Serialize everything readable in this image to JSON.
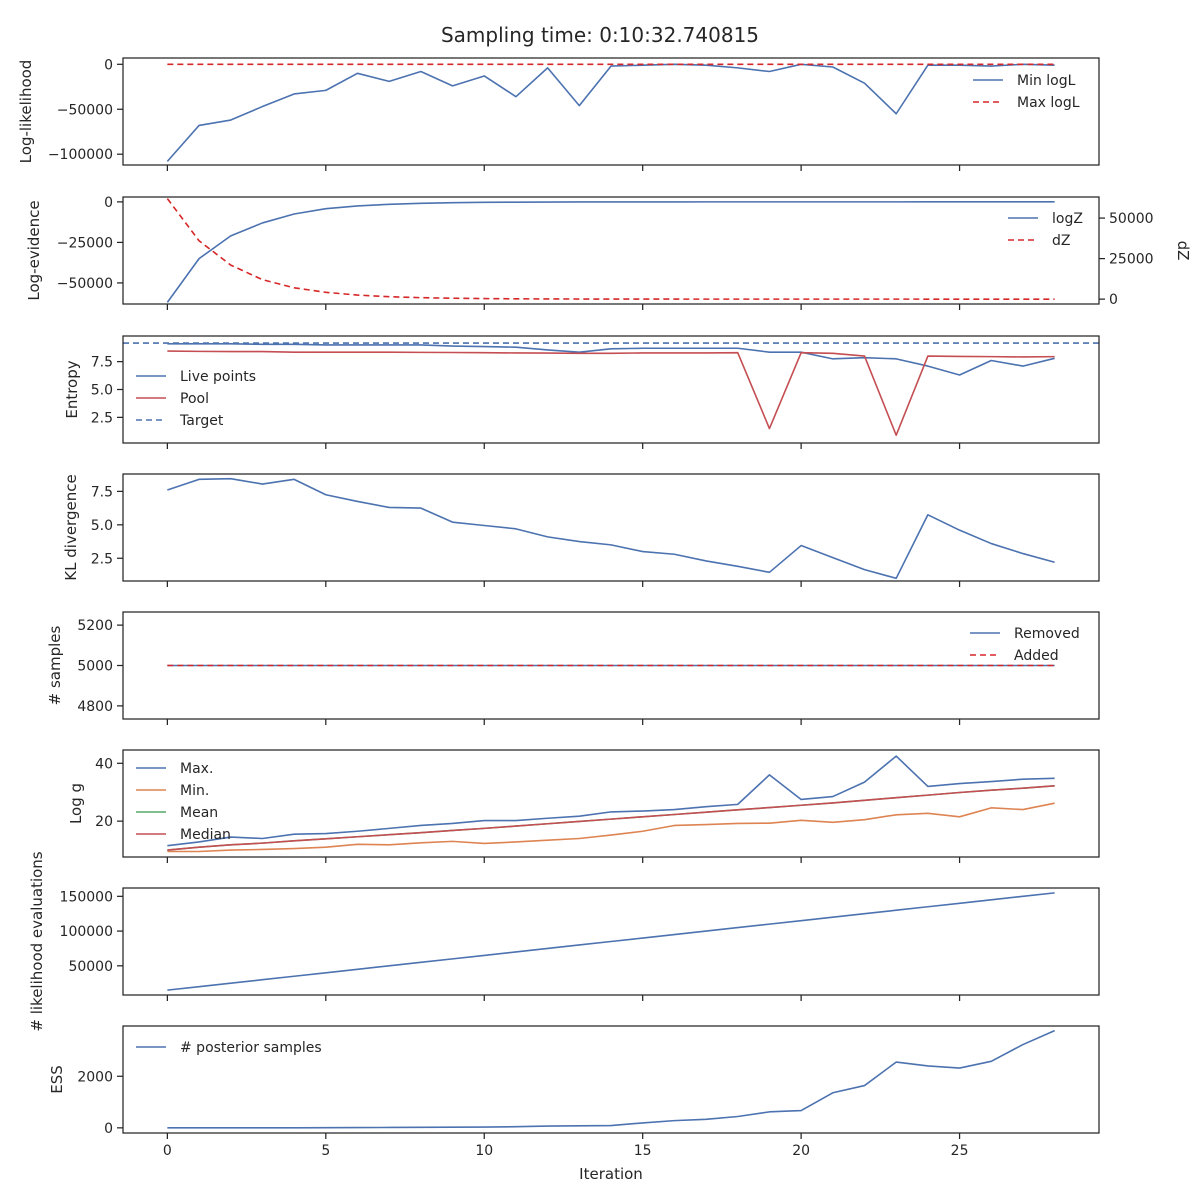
{
  "figure": {
    "title": "Sampling time: 0:10:32.740815",
    "xlabel": "Iteration",
    "x_ticks": [
      0,
      5,
      10,
      15,
      20,
      25
    ],
    "x_range": [
      -1.4,
      29.4
    ]
  },
  "colors": {
    "blue": "#4c72b0",
    "red": "#c44e52",
    "red_dashed": "#d62728",
    "orange": "#dd8452",
    "green": "#55a868"
  },
  "chart_data": [
    {
      "type": "line",
      "ylabel": "Log-likelihood",
      "ylim": [
        -112000,
        7000
      ],
      "y_ticks": [
        0,
        -50000,
        -100000
      ],
      "y_tick_labels": [
        "0",
        "−50000",
        "−100000"
      ],
      "legend": "top-right",
      "x": [
        0,
        1,
        2,
        3,
        4,
        5,
        6,
        7,
        8,
        9,
        10,
        11,
        12,
        13,
        14,
        15,
        16,
        17,
        18,
        19,
        20,
        21,
        22,
        23,
        24,
        25,
        26,
        27,
        28
      ],
      "series": [
        {
          "name": "Min logL",
          "style": "solid",
          "color": "blue",
          "values": [
            -108000,
            -68000,
            -62000,
            -47000,
            -33000,
            -29000,
            -10000,
            -19000,
            -8000,
            -24000,
            -13000,
            -36000,
            -4000,
            -46000,
            -2000,
            -1000,
            0,
            -1000,
            -4000,
            -8000,
            0,
            -3000,
            -21000,
            -55000,
            -1000,
            -1000,
            -2000,
            0,
            -1000
          ]
        },
        {
          "name": "Max logL",
          "style": "dashed",
          "color": "red_dashed",
          "values": [
            0,
            0,
            0,
            0,
            0,
            0,
            0,
            0,
            0,
            0,
            0,
            0,
            0,
            0,
            0,
            0,
            0,
            0,
            0,
            0,
            0,
            0,
            0,
            0,
            0,
            0,
            0,
            0,
            0
          ]
        }
      ]
    },
    {
      "type": "line",
      "ylabel": "Log-evidence",
      "ylabel_right": "dZ",
      "ylim": [
        -63000,
        3000
      ],
      "y_ticks": [
        0,
        -25000,
        -50000
      ],
      "y_tick_labels": [
        "0",
        "−25000",
        "−50000"
      ],
      "ylim_right": [
        -3000,
        63000
      ],
      "y_ticks_right": [
        0,
        25000,
        50000
      ],
      "y_tick_labels_right": [
        "0",
        "25000",
        "50000"
      ],
      "legend": "top-right",
      "x": [
        0,
        1,
        2,
        3,
        4,
        5,
        6,
        7,
        8,
        9,
        10,
        11,
        12,
        13,
        14,
        15,
        16,
        17,
        18,
        19,
        20,
        21,
        22,
        23,
        24,
        25,
        26,
        27,
        28
      ],
      "series": [
        {
          "name": "logZ",
          "style": "solid",
          "color": "blue",
          "axis": "left",
          "values": [
            -62000,
            -35000,
            -21000,
            -13000,
            -7500,
            -4200,
            -2500,
            -1500,
            -900,
            -500,
            -300,
            -180,
            -100,
            -60,
            -40,
            -25,
            -15,
            -10,
            -6,
            -4,
            -3,
            -2,
            -1,
            -1,
            0,
            0,
            0,
            0,
            0
          ]
        },
        {
          "name": "dZ",
          "style": "dashed",
          "color": "red_dashed",
          "axis": "right",
          "values": [
            62000,
            36000,
            21000,
            12000,
            7000,
            4200,
            2500,
            1500,
            900,
            550,
            330,
            200,
            120,
            70,
            45,
            28,
            17,
            10,
            6,
            4,
            3,
            2,
            1,
            1,
            0,
            0,
            0,
            0,
            0
          ]
        }
      ]
    },
    {
      "type": "line",
      "ylabel": "Entropy",
      "ylim": [
        0.2,
        9.8
      ],
      "y_ticks": [
        2.5,
        5.0,
        7.5
      ],
      "y_tick_labels": [
        "2.5",
        "5.0",
        "7.5"
      ],
      "legend": "left",
      "x": [
        0,
        1,
        2,
        3,
        4,
        5,
        6,
        7,
        8,
        9,
        10,
        11,
        12,
        13,
        14,
        15,
        16,
        17,
        18,
        19,
        20,
        21,
        22,
        23,
        24,
        25,
        26,
        27,
        28
      ],
      "series": [
        {
          "name": "Live points",
          "style": "solid",
          "color": "blue",
          "values": [
            9.1,
            9.1,
            9.1,
            9.05,
            9.05,
            9.0,
            9.0,
            9.0,
            9.0,
            8.9,
            8.85,
            8.8,
            8.55,
            8.35,
            8.65,
            8.7,
            8.7,
            8.7,
            8.7,
            8.35,
            8.35,
            7.75,
            7.85,
            7.75,
            7.1,
            6.3,
            7.6,
            7.1,
            7.8
          ]
        },
        {
          "name": "Pool",
          "style": "solid",
          "color": "red",
          "values": [
            8.45,
            8.42,
            8.4,
            8.4,
            8.35,
            8.35,
            8.35,
            8.35,
            8.33,
            8.32,
            8.3,
            8.28,
            8.27,
            8.25,
            8.25,
            8.28,
            8.28,
            8.28,
            8.3,
            1.5,
            8.3,
            8.25,
            8.0,
            0.9,
            8.0,
            7.97,
            7.95,
            7.92,
            7.95
          ]
        },
        {
          "name": "Target",
          "style": "dashed",
          "color": "blue",
          "constant": 9.17
        }
      ]
    },
    {
      "type": "line",
      "ylabel": "KL divergence",
      "ylim": [
        0.8,
        8.8
      ],
      "y_ticks": [
        2.5,
        5.0,
        7.5
      ],
      "y_tick_labels": [
        "2.5",
        "5.0",
        "7.5"
      ],
      "x": [
        0,
        1,
        2,
        3,
        4,
        5,
        6,
        7,
        8,
        9,
        10,
        11,
        12,
        13,
        14,
        15,
        16,
        17,
        18,
        19,
        20,
        21,
        22,
        23,
        24,
        25,
        26,
        27,
        28
      ],
      "series": [
        {
          "style": "solid",
          "color": "blue",
          "values": [
            7.6,
            8.4,
            8.45,
            8.05,
            8.4,
            7.25,
            6.75,
            6.3,
            6.25,
            5.2,
            4.95,
            4.7,
            4.1,
            3.75,
            3.5,
            3.0,
            2.8,
            2.3,
            1.9,
            1.45,
            3.45,
            2.55,
            1.65,
            1.0,
            5.75,
            4.6,
            3.6,
            2.85,
            2.2
          ]
        }
      ]
    },
    {
      "type": "line",
      "ylabel": "# samples",
      "ylim": [
        4735,
        5265
      ],
      "y_ticks": [
        4800,
        5000,
        5200
      ],
      "y_tick_labels": [
        "4800",
        "5000",
        "5200"
      ],
      "legend": "top-right",
      "x": [
        0,
        1,
        2,
        3,
        4,
        5,
        6,
        7,
        8,
        9,
        10,
        11,
        12,
        13,
        14,
        15,
        16,
        17,
        18,
        19,
        20,
        21,
        22,
        23,
        24,
        25,
        26,
        27,
        28
      ],
      "series": [
        {
          "name": "Removed",
          "style": "solid",
          "color": "blue",
          "values": [
            5000,
            5000,
            5000,
            5000,
            5000,
            5000,
            5000,
            5000,
            5000,
            5000,
            5000,
            5000,
            5000,
            5000,
            5000,
            5000,
            5000,
            5000,
            5000,
            5000,
            5000,
            5000,
            5000,
            5000,
            5000,
            5000,
            5000,
            5000,
            5000
          ]
        },
        {
          "name": "Added",
          "style": "dashed",
          "color": "red_dashed",
          "values": [
            5000,
            5000,
            5000,
            5000,
            5000,
            5000,
            5000,
            5000,
            5000,
            5000,
            5000,
            5000,
            5000,
            5000,
            5000,
            5000,
            5000,
            5000,
            5000,
            5000,
            5000,
            5000,
            5000,
            5000,
            5000,
            5000,
            5000,
            5000,
            5000
          ]
        }
      ]
    },
    {
      "type": "line",
      "ylabel": "Log g",
      "ylim": [
        7.6,
        44.6
      ],
      "y_ticks": [
        20,
        40
      ],
      "y_tick_labels": [
        "20",
        "40"
      ],
      "legend": "top-left",
      "x": [
        0,
        1,
        2,
        3,
        4,
        5,
        6,
        7,
        8,
        9,
        10,
        11,
        12,
        13,
        14,
        15,
        16,
        17,
        18,
        19,
        20,
        21,
        22,
        23,
        24,
        25,
        26,
        27,
        28
      ],
      "series": [
        {
          "name": "Max.",
          "style": "solid",
          "color": "blue",
          "values": [
            11.5,
            12.8,
            14.5,
            14.0,
            15.5,
            15.7,
            16.5,
            17.5,
            18.5,
            19.2,
            20.2,
            20.2,
            21.0,
            21.7,
            23.2,
            23.5,
            24.0,
            25.0,
            25.8,
            36.0,
            27.5,
            28.5,
            33.5,
            42.5,
            32.0,
            33.0,
            33.7,
            34.5,
            34.8
          ]
        },
        {
          "name": "Min.",
          "style": "solid",
          "color": "orange",
          "values": [
            9.5,
            9.5,
            10.0,
            10.2,
            10.5,
            11.0,
            12.0,
            11.8,
            12.5,
            13.0,
            12.3,
            12.8,
            13.4,
            14.0,
            15.2,
            16.5,
            18.5,
            18.8,
            19.2,
            19.3,
            20.3,
            19.6,
            20.5,
            22.2,
            22.7,
            21.5,
            24.6,
            24.0,
            26.2
          ]
        },
        {
          "name": "Mean",
          "style": "solid",
          "color": "green",
          "values": [
            10.0,
            11.0,
            11.8,
            12.4,
            13.2,
            13.9,
            14.6,
            15.3,
            16.0,
            16.8,
            17.5,
            18.3,
            19.1,
            19.9,
            20.7,
            21.5,
            22.3,
            23.1,
            23.9,
            24.7,
            25.5,
            26.3,
            27.2,
            28.1,
            29.0,
            29.9,
            30.7,
            31.4,
            32.2
          ]
        },
        {
          "name": "Median",
          "style": "solid",
          "color": "red",
          "values": [
            10.0,
            11.0,
            11.8,
            12.4,
            13.2,
            13.9,
            14.6,
            15.3,
            16.0,
            16.8,
            17.5,
            18.3,
            19.1,
            19.9,
            20.7,
            21.5,
            22.3,
            23.1,
            23.9,
            24.7,
            25.5,
            26.3,
            27.2,
            28.1,
            29.0,
            29.9,
            30.7,
            31.4,
            32.2
          ]
        }
      ]
    },
    {
      "type": "line",
      "ylabel": "# likelihood evaluations",
      "ylim": [
        8000,
        162000
      ],
      "y_ticks": [
        50000,
        100000,
        150000
      ],
      "y_tick_labels": [
        "50000",
        "100000",
        "150000"
      ],
      "x": [
        0,
        1,
        2,
        3,
        4,
        5,
        6,
        7,
        8,
        9,
        10,
        11,
        12,
        13,
        14,
        15,
        16,
        17,
        18,
        19,
        20,
        21,
        22,
        23,
        24,
        25,
        26,
        27,
        28
      ],
      "series": [
        {
          "style": "solid",
          "color": "blue",
          "values": [
            15000,
            20000,
            25000,
            30000,
            35000,
            40000,
            45000,
            50000,
            55000,
            60000,
            65000,
            70000,
            75000,
            80000,
            85000,
            90000,
            95000,
            100000,
            105000,
            110000,
            115000,
            120000,
            125000,
            130000,
            135000,
            140000,
            145000,
            150000,
            155000
          ]
        }
      ]
    },
    {
      "type": "line",
      "ylabel": "ESS",
      "ylim": [
        -200,
        3950
      ],
      "y_ticks": [
        0,
        2000
      ],
      "y_tick_labels": [
        "0",
        "2000"
      ],
      "legend": "top-left",
      "x": [
        0,
        1,
        2,
        3,
        4,
        5,
        6,
        7,
        8,
        9,
        10,
        11,
        12,
        13,
        14,
        15,
        16,
        17,
        18,
        19,
        20,
        21,
        22,
        23,
        24,
        25,
        26,
        27,
        28
      ],
      "series": [
        {
          "name": "# posterior samples",
          "style": "solid",
          "color": "blue",
          "values": [
            0,
            0,
            0,
            0,
            2,
            5,
            10,
            15,
            20,
            25,
            30,
            45,
            70,
            80,
            90,
            190,
            280,
            330,
            440,
            620,
            670,
            1360,
            1640,
            2550,
            2400,
            2320,
            2580,
            3230,
            3770
          ]
        }
      ]
    }
  ]
}
